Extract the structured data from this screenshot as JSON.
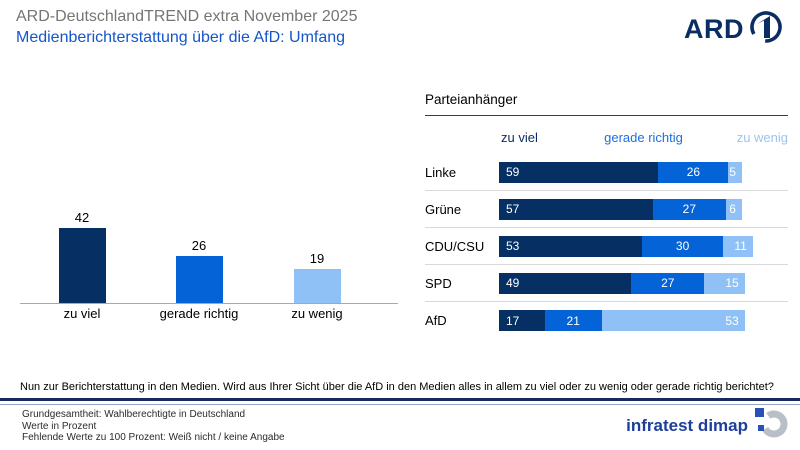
{
  "header": {
    "supertitle": "ARD-DeutschlandTREND extra November 2025",
    "title": "Medienberichterstattung über die AfD: Umfang",
    "ard_logo_text": "ARD"
  },
  "colors": {
    "navy": "#062f63",
    "medium_blue": "#0563d8",
    "light_blue": "#8fc1f6",
    "title_gray": "#757575",
    "title_blue": "#1556c8",
    "separator_gray": "#d9d9d9",
    "rule_navy": "#17295e"
  },
  "chart_data": [
    {
      "type": "bar",
      "title": "",
      "categories": [
        "zu viel",
        "gerade richtig",
        "zu wenig"
      ],
      "values": [
        42,
        26,
        19
      ],
      "unit": "percent",
      "ylim": [
        0,
        50
      ],
      "grid": false,
      "colors": [
        "#062f63",
        "#0563d8",
        "#8fc1f6"
      ]
    },
    {
      "type": "stacked-bar-horizontal",
      "title": "Parteianhänger",
      "series": [
        "zu viel",
        "gerade richtig",
        "zu wenig"
      ],
      "series_colors": [
        "#062f63",
        "#0563d8",
        "#8fc1f6"
      ],
      "header_text_colors": [
        "#0a2e63",
        "#1c6fe0",
        "#9cc4f0"
      ],
      "categories": [
        "Linke",
        "Grüne",
        "CDU/CSU",
        "SPD",
        "AfD"
      ],
      "rows": [
        [
          59,
          26,
          5
        ],
        [
          57,
          27,
          6
        ],
        [
          53,
          30,
          11
        ],
        [
          49,
          27,
          15
        ],
        [
          17,
          21,
          53
        ]
      ],
      "xmax": 100,
      "unit": "percent"
    }
  ],
  "question": "Nun zur Berichterstattung in den Medien. Wird aus Ihrer Sicht über die AfD in den Medien alles in allem zu viel oder zu wenig oder gerade richtig berichtet?",
  "footer": {
    "lines": [
      "Grundgesamtheit: Wahlberechtigte in Deutschland",
      "Werte in Prozent",
      "Fehlende Werte zu 100 Prozent: Weiß nicht / keine Angabe"
    ],
    "brand": "infratest dimap"
  }
}
